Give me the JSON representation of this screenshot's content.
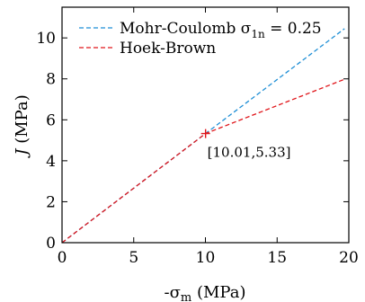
{
  "chart_data": {
    "type": "line",
    "xlabel_prefix": "-σ",
    "xlabel_sub": "m",
    "xlabel_suffix": " (MPa)",
    "ylabel_main": "J",
    "ylabel_suffix": " (MPa)",
    "xlim": [
      0,
      20
    ],
    "ylim": [
      0,
      11.5
    ],
    "xticks": [
      0,
      5,
      10,
      15,
      20
    ],
    "yticks": [
      0,
      2,
      4,
      6,
      8,
      10
    ],
    "grid": false,
    "legend_position": "top-left",
    "series": [
      {
        "name": "Mohr-Coulomb σ",
        "name_sub": "1n",
        "name_suffix": " = 0.25",
        "color": "#1f8fd6",
        "dash": "dashed",
        "x": [
          0,
          10.01,
          19.7
        ],
        "y": [
          0,
          5.33,
          10.45
        ]
      },
      {
        "name": "Hoek-Brown",
        "color": "#e0161b",
        "dash": "dashed",
        "x": [
          0,
          10.01,
          19.7
        ],
        "y": [
          0,
          5.33,
          7.98
        ]
      }
    ],
    "marker": {
      "x": 10.01,
      "y": 5.33,
      "symbol": "+",
      "color": "#e0161b"
    },
    "annotation": {
      "text": "[10.01,5.33]",
      "x": 10.01,
      "y": 5.33
    }
  }
}
